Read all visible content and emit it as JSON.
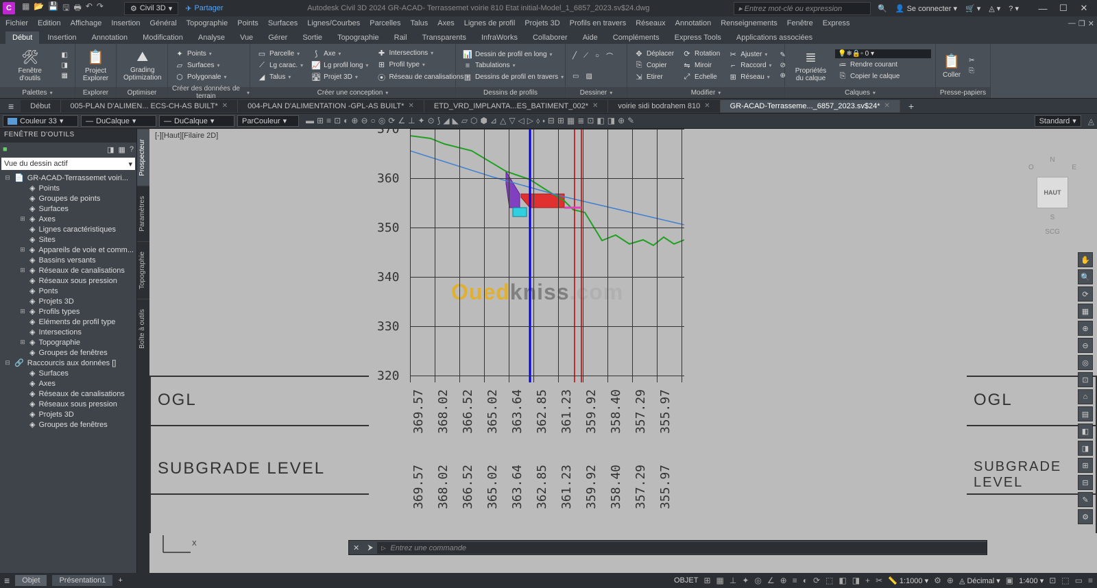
{
  "title": {
    "app": "C",
    "workspace": "Civil 3D",
    "share": "Partager",
    "doc": "Autodesk Civil 3D 2024   GR-ACAD- Terrassemet voirie 810 Etat initial-Model_1_6857_2023.sv$24.dwg",
    "search_ph": "Entrez mot-clé ou expression",
    "signin": "Se connecter"
  },
  "menu": [
    "Fichier",
    "Edition",
    "Affichage",
    "Insertion",
    "Général",
    "Topographie",
    "Points",
    "Surfaces",
    "Lignes/Courbes",
    "Parcelles",
    "Talus",
    "Axes",
    "Lignes de profil",
    "Projets 3D",
    "Profils en travers",
    "Réseaux",
    "Annotation",
    "Renseignements",
    "Fenêtre",
    "Express"
  ],
  "rtabs": [
    "Début",
    "Insertion",
    "Annotation",
    "Modification",
    "Analyse",
    "Vue",
    "Gérer",
    "Sortie",
    "Topographie",
    "Rail",
    "Transparents",
    "InfraWorks",
    "Collaborer",
    "Aide",
    "Compléments",
    "Express Tools",
    "Applications associées"
  ],
  "rtab_active": 0,
  "panels": {
    "palettes": "Palettes",
    "explorer": "Explorer",
    "grading": "Grading\nOptimization",
    "optimiser": "Optimiser",
    "terrain": "Créer des données de terrain",
    "conception": "Créer une conception",
    "profils": "Dessins de profils",
    "dessiner": "Dessiner",
    "modifier": "Modifier",
    "calques": "Calques",
    "presse": "Presse-papiers",
    "fenetre": "Fenêtre d'outils",
    "projexp": "Project\nExplorer",
    "points": "Points",
    "surfaces": "Surfaces",
    "polygonale": "Polygonale",
    "parcelle": "Parcelle",
    "lgcarac": "Lg carac.",
    "talus": "Talus",
    "axe": "Axe",
    "lgprofil": "Lg profil long",
    "projet3d": "Projet 3D",
    "intersections": "Intersections",
    "profiltype": "Profil type",
    "reseau": "Réseau de canalisations",
    "dessinprofil": "Dessin de profil en long",
    "tabulations": "Tabulations",
    "dessinstravers": "Dessins de profil en travers",
    "deplacer": "Déplacer",
    "copier": "Copier",
    "etirer": "Etirer",
    "rotation": "Rotation",
    "miroir": "Miroir",
    "echelle": "Echelle",
    "ajuster": "Ajuster",
    "raccord": "Raccord",
    "reseau2": "Réseau",
    "prop": "Propriétés\ndu calque",
    "rendre": "Rendre courant",
    "copiercalque": "Copier le calque",
    "coller": "Coller"
  },
  "docs": [
    {
      "l": "Début",
      "a": false
    },
    {
      "l": "005-PLAN D'ALIMEN... ECS-CH-AS BUILT*",
      "a": false
    },
    {
      "l": "004-PLAN D'ALIMENTATION -GPL-AS BUILT*",
      "a": false
    },
    {
      "l": "ETD_VRD_IMPLANTA...ES_BATIMENT_002*",
      "a": false
    },
    {
      "l": "voirie sidi bodrahem 810",
      "a": false
    },
    {
      "l": "GR-ACAD-Terrasseme..._6857_2023.sv$24*",
      "a": true
    }
  ],
  "prop": {
    "color": "Couleur 33",
    "color_hex": "#5a9bd5",
    "layer": "DuCalque",
    "ltype": "DuCalque",
    "lweight": "ParCouleur",
    "anno": "Standard"
  },
  "ts": {
    "title": "FENÊTRE D'OUTILS",
    "view": "Vue du dessin actif",
    "root": "GR-ACAD-Terrassemet voiri...",
    "items": [
      "Points",
      "Groupes de points",
      "Surfaces",
      "Axes",
      "Lignes caractéristiques",
      "Sites",
      "Appareils de voie et comm...",
      "Bassins versants",
      "Réseaux de canalisations",
      "Réseaux sous pression",
      "Ponts",
      "Projets 3D",
      "Profils types",
      "Eléments de profil type",
      "Intersections",
      "Topographie",
      "Groupes de fenêtres"
    ],
    "shortcuts": "Raccourcis aux données []",
    "sc_items": [
      "Surfaces",
      "Axes",
      "Réseaux de canalisations",
      "Réseaux sous pression",
      "Projets 3D",
      "Groupes de fenêtres"
    ],
    "tabs": [
      "Prospecteur",
      "Paramètres",
      "Topographie",
      "Boîte à outils"
    ]
  },
  "canvas": {
    "view": "[-][Haut][Filaire 2D]",
    "ogl": "OGL",
    "subgrade": "SUBGRADE LEVEL",
    "yticks": [
      370,
      360,
      350,
      340,
      330,
      320
    ],
    "xvals": [
      "369.57",
      "368.02",
      "366.52",
      "365.02",
      "363.64",
      "362.85",
      "361.23",
      "359.92",
      "358.40",
      "357.29",
      "355.97"
    ],
    "green": [
      [
        0,
        10
      ],
      [
        30,
        14
      ],
      [
        50,
        22
      ],
      [
        90,
        32
      ],
      [
        140,
        62
      ],
      [
        175,
        74
      ],
      [
        200,
        90
      ],
      [
        225,
        105
      ],
      [
        238,
        118
      ],
      [
        255,
        122
      ],
      [
        280,
        163
      ],
      [
        300,
        155
      ],
      [
        320,
        168
      ],
      [
        340,
        162
      ],
      [
        355,
        170
      ],
      [
        370,
        158
      ],
      [
        385,
        168
      ],
      [
        400,
        162
      ]
    ],
    "blue": [
      [
        0,
        32
      ],
      [
        120,
        70
      ],
      [
        220,
        98
      ],
      [
        400,
        140
      ]
    ],
    "red_fill": "#e03030",
    "purple_fill": "#8040c0",
    "cyan_fill": "#30d0e0",
    "cube": "HAUT",
    "scg": "SCG"
  },
  "cmd": {
    "prompt": "Entrez une commande"
  },
  "btabs": {
    "obj": "Objet",
    "pres": "Présentation1"
  },
  "status": {
    "objet": "OBJET",
    "decimal": "Décimal",
    "scale": "1:1000",
    "zoom": "1:400"
  }
}
